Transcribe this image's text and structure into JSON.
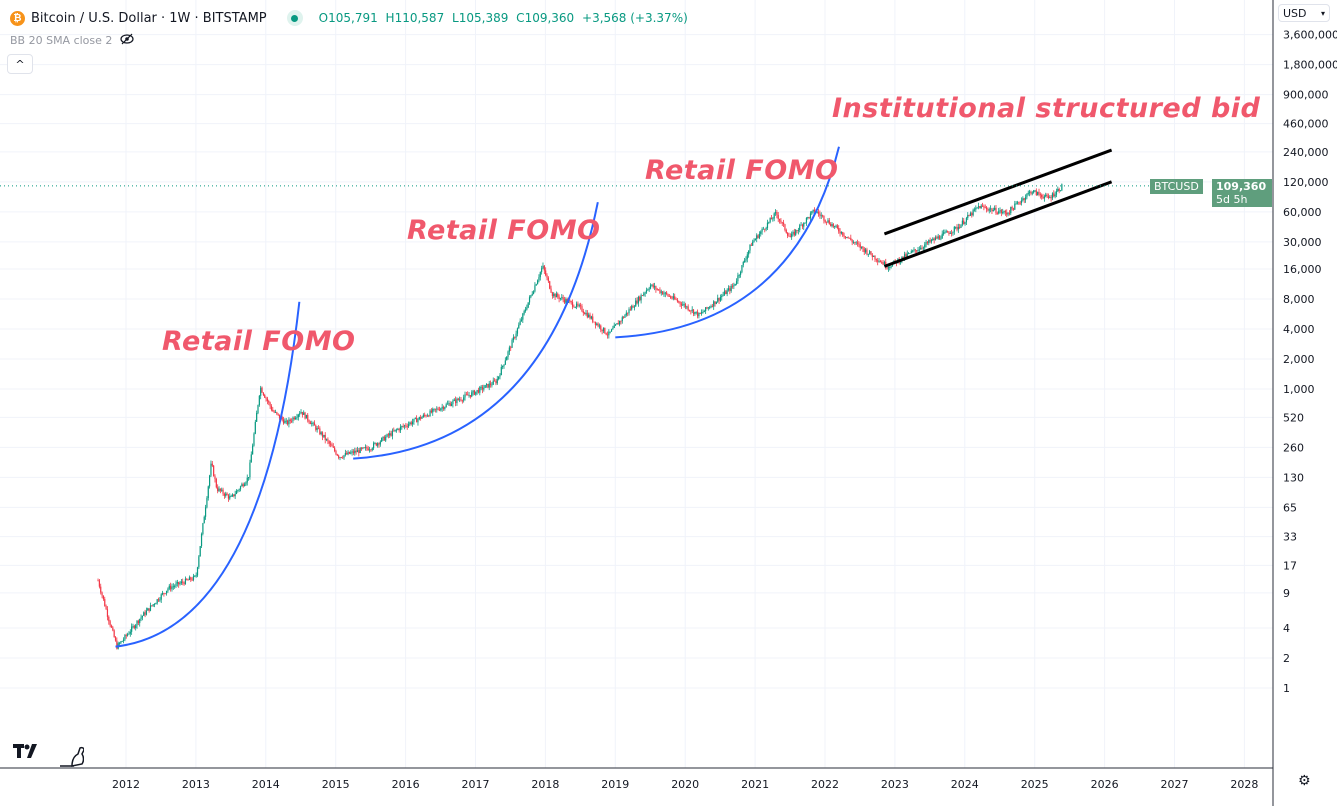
{
  "header": {
    "symbol_icon": "bitcoin-icon",
    "title": "Bitcoin / U.S. Dollar · 1W · BITSTAMP",
    "market_status": "market-open-dot",
    "ohlc": {
      "open_label": "O",
      "open": "105,791",
      "high_label": "H",
      "high": "110,587",
      "low_label": "L",
      "low": "105,389",
      "close_label": "C",
      "close": "109,360",
      "change": "+3,568 (+3.37%)"
    },
    "indicator": "BB 20 SMA close 2",
    "indicator_icon": "eye-crossed-icon",
    "collapse_icon": "chevron-up-icon"
  },
  "price_scale": {
    "currency": "USD"
  },
  "price_tag": {
    "symbol": "BTCUSD",
    "price": "109,360",
    "countdown": "5d 5h"
  },
  "annotations": [
    {
      "text": "Retail FOMO"
    },
    {
      "text": "Retail FOMO"
    },
    {
      "text": "Retail FOMO"
    },
    {
      "text": "Institutional structured bid"
    }
  ],
  "colors": {
    "up": "#089981",
    "down": "#f23645",
    "curve": "#2962ff",
    "channel": "#000000",
    "annotation": "#f0586c",
    "tag": "#5f9e7d"
  },
  "chart_data": {
    "type": "candlestick",
    "title": "Bitcoin / U.S. Dollar · 1W · BITSTAMP",
    "y_scale": "log",
    "ylim": [
      0.5,
      3600000
    ],
    "xlim": [
      2011.3,
      2028.4
    ],
    "x_ticks": [
      "2012",
      "2013",
      "2014",
      "2015",
      "2016",
      "2017",
      "2018",
      "2019",
      "2020",
      "2021",
      "2022",
      "2023",
      "2024",
      "2025",
      "2026",
      "2027",
      "2028"
    ],
    "y_ticks": [
      "3,600,000",
      "1,800,000",
      "900,000",
      "460,000",
      "240,000",
      "120,000",
      "60,000",
      "30,000",
      "16,000",
      "8,000",
      "4,000",
      "2,000",
      "1,000",
      "520",
      "260",
      "130",
      "65",
      "33",
      "17",
      "9",
      "4",
      "2",
      "1"
    ],
    "grid": true,
    "price_path": [
      [
        2011.6,
        12
      ],
      [
        2011.75,
        5
      ],
      [
        2011.87,
        2.6
      ],
      [
        2011.95,
        3
      ],
      [
        2012.2,
        5
      ],
      [
        2012.6,
        10
      ],
      [
        2013.0,
        13
      ],
      [
        2013.22,
        180
      ],
      [
        2013.3,
        100
      ],
      [
        2013.5,
        80
      ],
      [
        2013.75,
        130
      ],
      [
        2013.92,
        1050
      ],
      [
        2014.1,
        600
      ],
      [
        2014.3,
        450
      ],
      [
        2014.5,
        600
      ],
      [
        2014.8,
        350
      ],
      [
        2015.05,
        210
      ],
      [
        2015.5,
        260
      ],
      [
        2015.9,
        400
      ],
      [
        2016.5,
        650
      ],
      [
        2016.95,
        900
      ],
      [
        2017.3,
        1200
      ],
      [
        2017.6,
        4000
      ],
      [
        2017.96,
        17000
      ],
      [
        2018.1,
        9000
      ],
      [
        2018.5,
        6500
      ],
      [
        2018.9,
        3500
      ],
      [
        2019.5,
        11000
      ],
      [
        2019.95,
        7200
      ],
      [
        2020.2,
        5500
      ],
      [
        2020.7,
        11000
      ],
      [
        2020.95,
        29000
      ],
      [
        2021.3,
        58000
      ],
      [
        2021.5,
        33000
      ],
      [
        2021.85,
        62000
      ],
      [
        2022.4,
        30000
      ],
      [
        2022.9,
        17000
      ],
      [
        2023.5,
        30000
      ],
      [
        2023.9,
        42000
      ],
      [
        2024.2,
        68000
      ],
      [
        2024.6,
        58000
      ],
      [
        2024.95,
        97000
      ],
      [
        2025.2,
        82000
      ],
      [
        2025.4,
        109360
      ]
    ],
    "curves": [
      {
        "kind": "parabolic",
        "points": [
          [
            2011.85,
            2.6
          ],
          [
            2014.48,
            7500
          ]
        ]
      },
      {
        "kind": "parabolic",
        "points": [
          [
            2015.25,
            200
          ],
          [
            2018.75,
            75000
          ]
        ]
      },
      {
        "kind": "parabolic",
        "points": [
          [
            2019.0,
            3300
          ],
          [
            2022.2,
            270000
          ]
        ]
      }
    ],
    "channel": {
      "upper": [
        [
          2022.85,
          36000
        ],
        [
          2026.1,
          250000
        ]
      ],
      "lower": [
        [
          2022.85,
          17000
        ],
        [
          2026.1,
          120000
        ]
      ]
    },
    "last_price": 109360
  }
}
